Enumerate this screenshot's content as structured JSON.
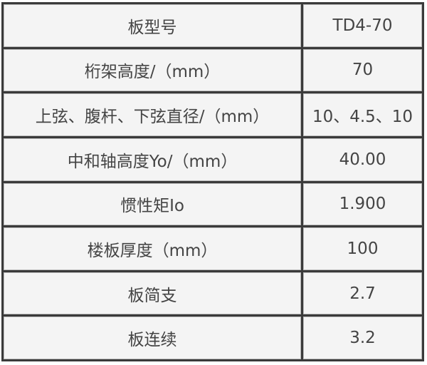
{
  "rows": [
    {
      "label": "板型号",
      "value": "TD4-70"
    },
    {
      "label": "桁架高度/（mm）",
      "value": "70"
    },
    {
      "label": "上弦、腹杆、下弦直径/（mm）",
      "value": "10、4.5、10"
    },
    {
      "label": "中和轴高度Yo/（mm）",
      "value": "40.00"
    },
    {
      "label": "惯性矩Io",
      "value": "1.900"
    },
    {
      "label": "楼板厚度（mm）",
      "value": "100"
    },
    {
      "label": "板简支",
      "value": "2.7"
    },
    {
      "label": "板连续",
      "value": "3.2"
    }
  ]
}
